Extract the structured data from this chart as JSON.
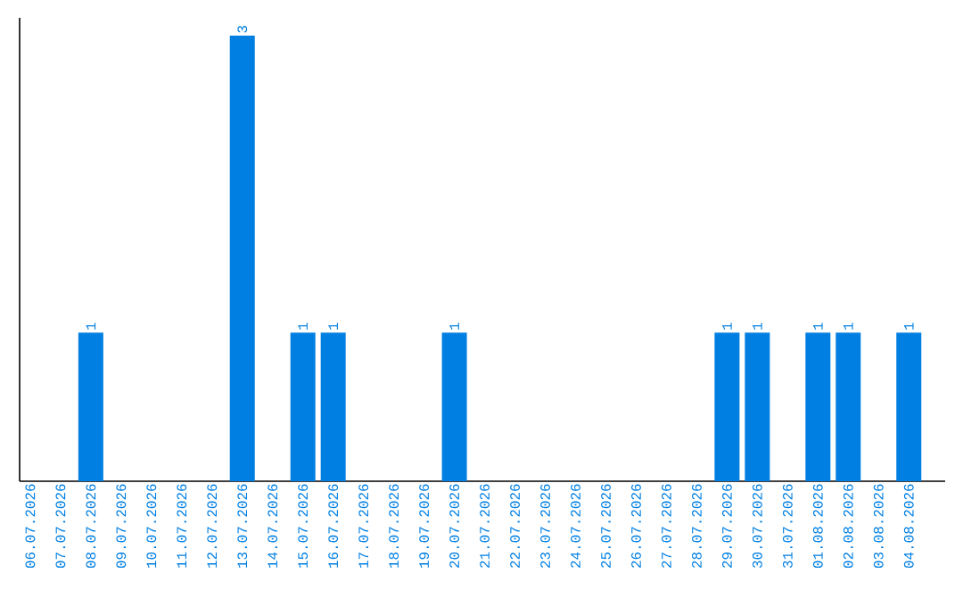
{
  "chart_data": {
    "type": "bar",
    "categories": [
      "06.07.2026",
      "07.07.2026",
      "08.07.2026",
      "09.07.2026",
      "10.07.2026",
      "11.07.2026",
      "12.07.2026",
      "13.07.2026",
      "14.07.2026",
      "15.07.2026",
      "16.07.2026",
      "17.07.2026",
      "18.07.2026",
      "19.07.2026",
      "20.07.2026",
      "21.07.2026",
      "22.07.2026",
      "23.07.2026",
      "24.07.2026",
      "25.07.2026",
      "26.07.2026",
      "27.07.2026",
      "28.07.2026",
      "29.07.2026",
      "30.07.2026",
      "31.07.2026",
      "01.08.2026",
      "02.08.2026",
      "03.08.2026",
      "04.08.2026"
    ],
    "values": [
      0,
      0,
      1,
      0,
      0,
      0,
      0,
      3,
      0,
      1,
      1,
      0,
      0,
      0,
      1,
      0,
      0,
      0,
      0,
      0,
      0,
      0,
      0,
      1,
      1,
      0,
      1,
      1,
      0,
      1
    ],
    "value_labels": [
      null,
      null,
      "1",
      null,
      null,
      null,
      null,
      "3",
      null,
      "1",
      "1",
      null,
      null,
      null,
      "1",
      null,
      null,
      null,
      null,
      null,
      null,
      null,
      null,
      "1",
      "1",
      null,
      "1",
      "1",
      null,
      "1"
    ],
    "color": "#007fe2",
    "ylim": [
      0,
      3.12
    ],
    "tick_labels": "x"
  }
}
